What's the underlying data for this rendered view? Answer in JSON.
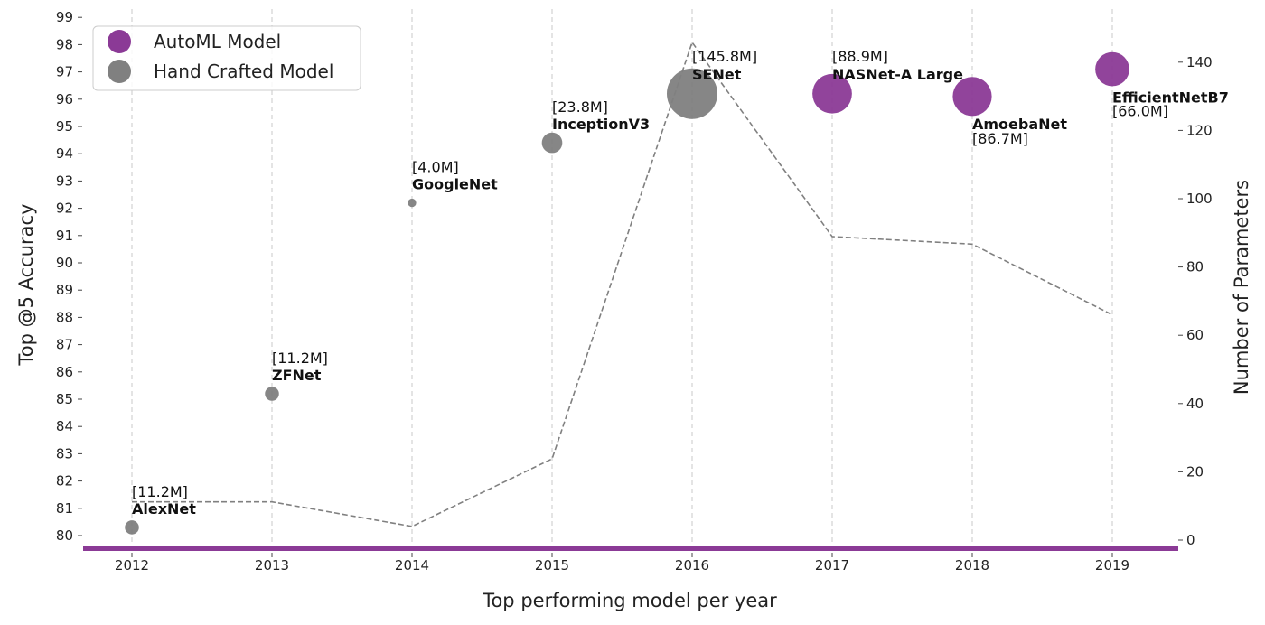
{
  "chart_data": {
    "type": "scatter",
    "title": "",
    "xlabel": "Top performing model per year",
    "ylabel": "Top @5 Accuracy",
    "y2label": "Number of Parameters",
    "categories": [
      "2012",
      "2013",
      "2014",
      "2015",
      "2016",
      "2017",
      "2018",
      "2019"
    ],
    "ylim": [
      79.5,
      99
    ],
    "y2lim": [
      -3,
      148
    ],
    "yticks": [
      80,
      81,
      82,
      83,
      84,
      85,
      86,
      87,
      88,
      89,
      90,
      91,
      92,
      93,
      94,
      95,
      96,
      97,
      98,
      99
    ],
    "y2ticks": [
      0,
      20,
      40,
      60,
      80,
      100,
      120,
      140
    ],
    "grid": "vertical dashed",
    "legend_position": "top-left",
    "legend": [
      {
        "label": "AutoML Model",
        "color": "#8B3A96"
      },
      {
        "label": "Hand Crafted Model",
        "color": "#808080"
      }
    ],
    "models": [
      {
        "year": "2012",
        "name": "AlexNet",
        "params_label": "[11.2M]",
        "params": 11.2,
        "accuracy": 80.3,
        "type": "hand"
      },
      {
        "year": "2013",
        "name": "ZFNet",
        "params_label": "[11.2M]",
        "params": 11.2,
        "accuracy": 85.2,
        "type": "hand"
      },
      {
        "year": "2014",
        "name": "GoogleNet",
        "params_label": "[4.0M]",
        "params": 4.0,
        "accuracy": 92.2,
        "type": "hand"
      },
      {
        "year": "2015",
        "name": "InceptionV3",
        "params_label": "[23.8M]",
        "params": 23.8,
        "accuracy": 94.4,
        "type": "hand"
      },
      {
        "year": "2016",
        "name": "SENet",
        "params_label": "[145.8M]",
        "params": 145.8,
        "accuracy": 96.2,
        "type": "hand"
      },
      {
        "year": "2017",
        "name": "NASNet-A Large",
        "params_label": "[88.9M]",
        "params": 88.9,
        "accuracy": 96.2,
        "type": "automl"
      },
      {
        "year": "2018",
        "name": "AmoebaNet",
        "params_label": "[86.7M]",
        "params": 86.7,
        "accuracy": 96.1,
        "type": "automl"
      },
      {
        "year": "2019",
        "name": "EfficientNetB7",
        "params_label": "[66.0M]",
        "params": 66.0,
        "accuracy": 97.1,
        "type": "automl"
      }
    ],
    "params_line": {
      "style": "dashed",
      "color": "#808080",
      "values": [
        11.2,
        11.2,
        4.0,
        23.8,
        145.8,
        88.9,
        86.7,
        66.0
      ]
    },
    "baseline_color": "#8B3A96"
  }
}
